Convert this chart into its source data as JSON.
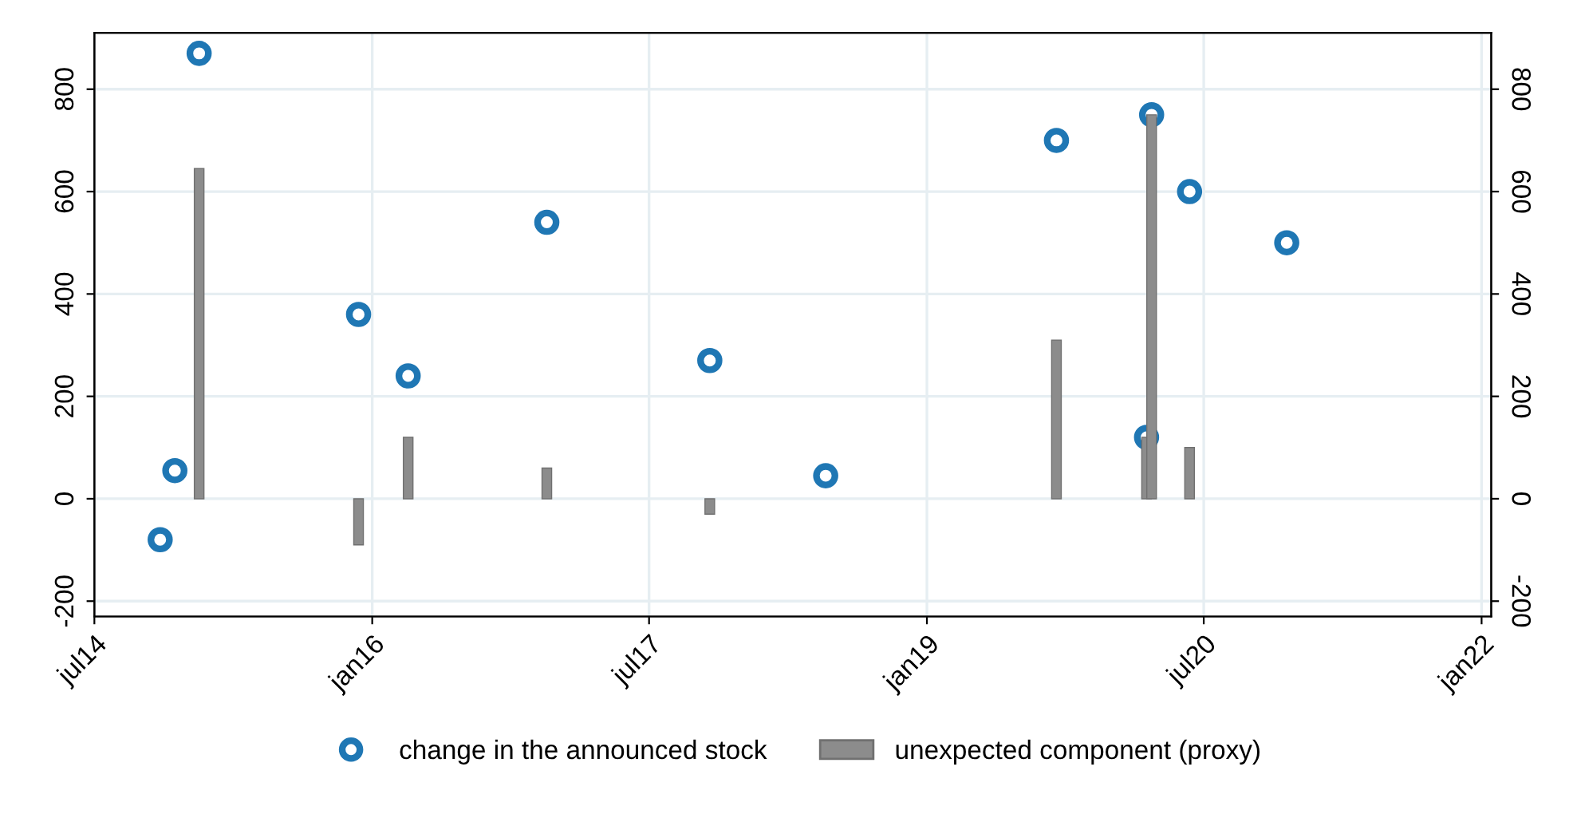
{
  "chart_data": {
    "type": "scatter",
    "xlim": [
      "2014-07-01",
      "2022-01-20"
    ],
    "xticks": [
      {
        "value": "2014-07-01",
        "label": "jul14"
      },
      {
        "value": "2016-01-01",
        "label": "jan16"
      },
      {
        "value": "2017-07-01",
        "label": "jul17"
      },
      {
        "value": "2019-01-01",
        "label": "jan19"
      },
      {
        "value": "2020-07-01",
        "label": "jul20"
      },
      {
        "value": "2022-01-01",
        "label": "jan22"
      }
    ],
    "ylim": [
      -230,
      910
    ],
    "yticks": [
      -200,
      0,
      200,
      400,
      600,
      800
    ],
    "y2lim": [
      -230,
      910
    ],
    "y2ticks": [
      -200,
      0,
      200,
      400,
      600,
      800
    ],
    "grid": true,
    "legend": "bottom",
    "series": [
      {
        "name": "change in the announced stock",
        "marker": "circle",
        "color": "#1f77b4",
        "x": [
          "2014-11-08",
          "2014-12-07",
          "2015-01-24",
          "2015-12-05",
          "2016-03-12",
          "2016-12-11",
          "2017-10-29",
          "2018-06-15",
          "2019-09-14",
          "2020-03-20",
          "2020-03-10",
          "2020-06-03",
          "2020-12-12"
        ],
        "values": [
          -80,
          55,
          870,
          360,
          240,
          540,
          270,
          45,
          700,
          750,
          120,
          600,
          500
        ]
      },
      {
        "name": "unexpected component (proxy)",
        "type": "bar",
        "color": "#8c8c8c",
        "x": [
          "2015-01-24",
          "2015-12-05",
          "2016-03-12",
          "2016-12-11",
          "2017-10-29",
          "2019-09-14",
          "2020-03-10",
          "2020-03-20",
          "2020-06-03"
        ],
        "values": [
          645,
          -90,
          120,
          60,
          -30,
          310,
          120,
          750,
          100
        ]
      }
    ]
  }
}
